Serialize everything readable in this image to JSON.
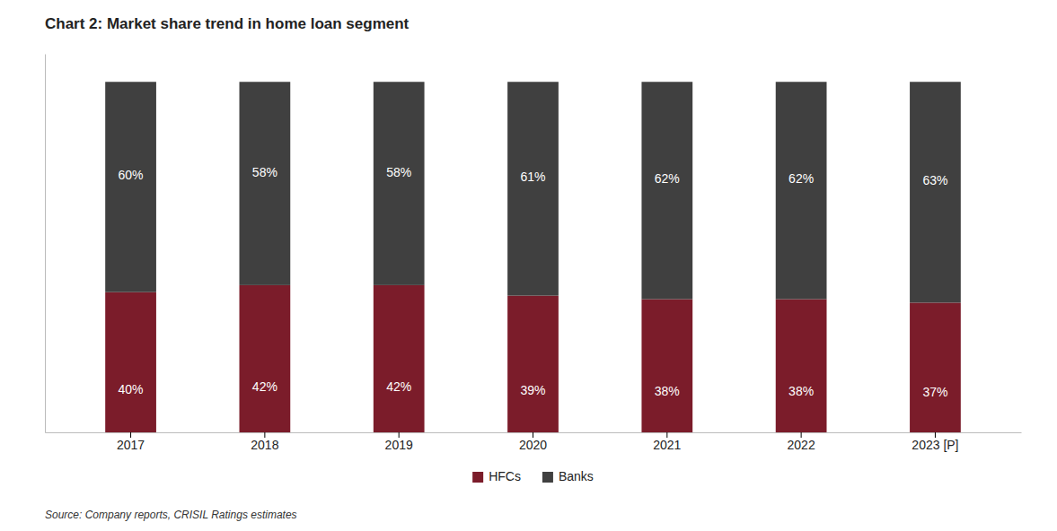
{
  "chart_data": {
    "type": "bar",
    "title": "Chart 2: Market share trend in home loan segment",
    "categories": [
      "2017",
      "2018",
      "2019",
      "2020",
      "2021",
      "2022",
      "2023 [P]"
    ],
    "series": [
      {
        "name": "HFCs",
        "color": "#7B1C2A",
        "values": [
          40,
          42,
          42,
          39,
          38,
          38,
          37
        ],
        "value_labels": [
          "40%",
          "42%",
          "42%",
          "39%",
          "38%",
          "38%",
          "37%"
        ]
      },
      {
        "name": "Banks",
        "color": "#404040",
        "values": [
          60,
          58,
          58,
          61,
          62,
          62,
          63
        ],
        "value_labels": [
          "60%",
          "58%",
          "58%",
          "61%",
          "62%",
          "62%",
          "63%"
        ]
      }
    ],
    "stacked": true,
    "data_labels": true,
    "ylim": [
      0,
      108
    ],
    "tick_labels": "x",
    "grid": false,
    "legend": "bottom",
    "annotations": [
      "Source: Company reports, CRISIL Ratings estimates"
    ]
  }
}
